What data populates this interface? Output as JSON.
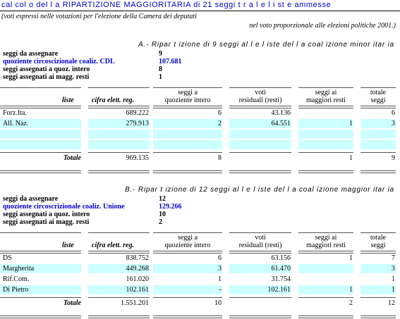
{
  "title": "cal col o del l a RIPARTIZIONE MAGGIORITARIA di 21 seggi t r a l e l i st e ammesse",
  "note": {
    "line1": "(voti espressi nelle votazioni per l'elezione della Camera dei deputati",
    "line2": "nel voto proporzionale alle elezioni politiche 2001.)"
  },
  "columns": {
    "liste": "liste",
    "cifra": "cifra elett. reg.",
    "quoz_1": "seggi a",
    "quoz_2": "quoziente intero",
    "voti_1": "voti",
    "voti_2": "residuali (resti)",
    "magg_1": "seggi ai",
    "magg_2": "maggiori resti",
    "tot_1": "totale",
    "tot_2": "seggi"
  },
  "sections": [
    {
      "heading": "A.- Ripar t izione di 9 seggi al l e l iste del l a coal izione minor itar ia",
      "kv": [
        {
          "label": "seggi da assegnare",
          "value": "9",
          "blue": false
        },
        {
          "label": "quoziente circoscizionale coaliz. CDL",
          "value": "107.681",
          "blue": true
        },
        {
          "label": "seggi assegnati a quoz. intero",
          "value": "8",
          "blue": false
        },
        {
          "label": "seggi assegnati ai magg. resti",
          "value": "1",
          "blue": false
        }
      ],
      "rows": [
        {
          "lista": "Forz.Ita.",
          "cifra": "689.222",
          "quoz": "6",
          "voti": "43.136",
          "magg": "",
          "tot": "6"
        },
        {
          "lista": "All. Naz.",
          "cifra": "279.913",
          "quoz": "2",
          "voti": "64.551",
          "magg": "1",
          "tot": "3"
        },
        {
          "lista": "",
          "cifra": "",
          "quoz": "",
          "voti": "",
          "magg": "",
          "tot": ""
        },
        {
          "lista": "",
          "cifra": "",
          "quoz": "",
          "voti": "",
          "magg": "",
          "tot": ""
        }
      ],
      "total": {
        "label": "Totale",
        "cifra": "969.135",
        "quoz": "8",
        "voti": "",
        "magg": "1",
        "tot": "9"
      }
    },
    {
      "heading": "B.- Ripar t izione di 12 seggi al l e l iste del l a coal izione maggior itar ia",
      "kv": [
        {
          "label": "seggi da assegnare",
          "value": "12",
          "blue": false
        },
        {
          "label": "quoziente circoscrizionale coaliz. Unione",
          "value": "129.266",
          "blue": true
        },
        {
          "label": "seggi assegnati a quoz. intero",
          "value": "10",
          "blue": false
        },
        {
          "label": "seggi assegnati ai magg. resti",
          "value": "2",
          "blue": false
        }
      ],
      "rows": [
        {
          "lista": "DS",
          "cifra": "838.752",
          "quoz": "6",
          "voti": "63.156",
          "magg": "1",
          "tot": "7"
        },
        {
          "lista": "Margherita",
          "cifra": "449.268",
          "quoz": "3",
          "voti": "61.470",
          "magg": "",
          "tot": "3"
        },
        {
          "lista": "Rif.Com.",
          "cifra": "161.020",
          "quoz": "1",
          "voti": "31.754",
          "magg": "",
          "tot": "1"
        },
        {
          "lista": "Di Pietro",
          "cifra": "102.161",
          "quoz": "-",
          "voti": "102.161",
          "magg": "1",
          "tot": "1"
        }
      ],
      "total": {
        "label": "Totale",
        "cifra": "1.551.201",
        "quoz": "10",
        "voti": "",
        "magg": "2",
        "tot": "12"
      }
    }
  ]
}
